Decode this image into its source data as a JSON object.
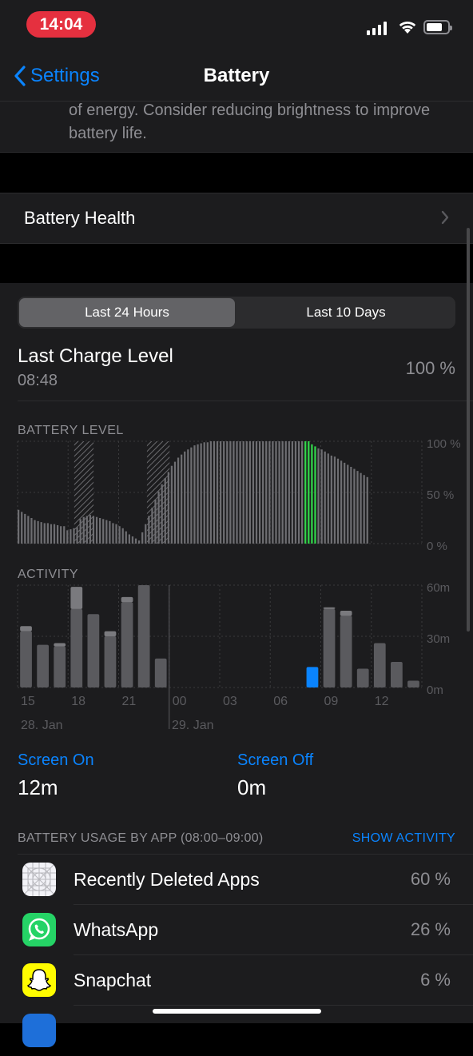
{
  "status": {
    "time": "14:04"
  },
  "nav": {
    "back_label": "Settings",
    "title": "Battery"
  },
  "note": {
    "text": "of energy. Consider reducing brightness to improve battery life."
  },
  "health": {
    "label": "Battery Health"
  },
  "segment": {
    "options": [
      "Last 24 Hours",
      "Last 10 Days"
    ],
    "selected": "Last 24 Hours"
  },
  "last_charge": {
    "label": "Last Charge Level",
    "time": "08:48",
    "value": "100 %"
  },
  "battery_level": {
    "label": "BATTERY LEVEL",
    "y_ticks": [
      "100 %",
      "50 %",
      "0 %"
    ]
  },
  "activity": {
    "label": "ACTIVITY",
    "y_ticks": [
      "60m",
      "30m",
      "0m"
    ],
    "x_ticks": [
      "15",
      "18",
      "21",
      "00",
      "03",
      "06",
      "09",
      "12"
    ],
    "date_labels": [
      "28. Jan",
      "29. Jan"
    ]
  },
  "screen": {
    "on_label": "Screen On",
    "on_value": "12m",
    "off_label": "Screen Off",
    "off_value": "0m"
  },
  "usage": {
    "header": "BATTERY USAGE BY APP (08:00–09:00)",
    "show_activity": "SHOW ACTIVITY",
    "apps": [
      {
        "name": "Recently Deleted Apps",
        "pct": "60 %",
        "icon": "recently-deleted-apps-icon"
      },
      {
        "name": "WhatsApp",
        "pct": "26 %",
        "icon": "whatsapp-icon"
      },
      {
        "name": "Snapchat",
        "pct": "6 %",
        "icon": "snapchat-icon"
      }
    ]
  },
  "colors": {
    "accent": "#0a84ff",
    "charging": "#32d74b",
    "time_pill": "#e5303f",
    "selected_bar": "#0a84ff",
    "bar": "#5a5a5e",
    "bar_top": "#7a7a7e"
  },
  "chart_data": [
    {
      "type": "bar",
      "title": "BATTERY LEVEL",
      "ylim": [
        0,
        100
      ],
      "y_ticks": [
        "0 %",
        "50 %",
        "100 %"
      ],
      "charging_periods": [
        "~15:45–16:15",
        "~20:00–21:00",
        "~21:00–03:00",
        "08:00–09:00"
      ],
      "series": [
        {
          "values": [
            33,
            31,
            29,
            27,
            25,
            23,
            22,
            21,
            20,
            20,
            19,
            19,
            18,
            17,
            17,
            13,
            14,
            15,
            16,
            24,
            26,
            27,
            28,
            27,
            26,
            25,
            24,
            23,
            22,
            20,
            19,
            17,
            15,
            12,
            9,
            7,
            5,
            3,
            11,
            19,
            27,
            35,
            43,
            51,
            58,
            64,
            70,
            76,
            80,
            84,
            87,
            90,
            92,
            94,
            96,
            97,
            98,
            99,
            99,
            100,
            100,
            100,
            100,
            100,
            100,
            100,
            100,
            100,
            100,
            100,
            100,
            100,
            100,
            100,
            100,
            100,
            100,
            100,
            100,
            100,
            100,
            100,
            100,
            100,
            100,
            100,
            100,
            100,
            100,
            100,
            97,
            95,
            93,
            92,
            90,
            88,
            86,
            85,
            83,
            81,
            79,
            77,
            75,
            73,
            71,
            69,
            67,
            65
          ]
        }
      ]
    },
    {
      "type": "bar",
      "title": "ACTIVITY",
      "ylim": [
        0,
        60
      ],
      "y_ticks": [
        "0m",
        "30m",
        "60m"
      ],
      "categories": [
        "15",
        "16",
        "17",
        "18",
        "19",
        "20",
        "21",
        "22",
        "23",
        "00",
        "01",
        "02",
        "03",
        "04",
        "05",
        "06",
        "07",
        "08",
        "09",
        "10",
        "11",
        "12",
        "13",
        "14"
      ],
      "series": [
        {
          "name": "Screen On",
          "values": [
            33,
            25,
            24,
            46,
            43,
            30,
            50,
            60,
            17,
            0,
            0,
            0,
            0,
            0,
            0,
            0,
            0,
            12,
            46,
            42,
            11,
            26,
            15,
            4
          ]
        },
        {
          "name": "Screen Off",
          "values": [
            3,
            0,
            2,
            13,
            0,
            3,
            3,
            0,
            0,
            0,
            0,
            0,
            0,
            0,
            0,
            0,
            0,
            0,
            1,
            3,
            0,
            0,
            0,
            0
          ]
        }
      ],
      "selected_category": "08"
    }
  ]
}
